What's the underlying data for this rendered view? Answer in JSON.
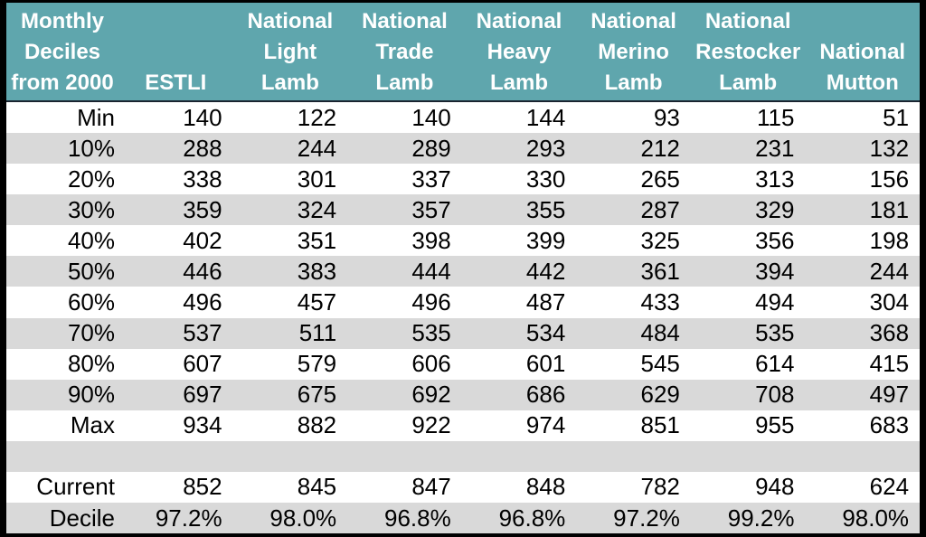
{
  "colors": {
    "header_bg": "#5FA6AD",
    "header_text": "#FFFFFF",
    "stripe_row": "#D9D9D9",
    "plain_row": "#FFFFFF",
    "divider": "#1A2430",
    "outer_border": "#000000",
    "data_text": "#000000"
  },
  "chart_data": {
    "type": "table",
    "title": "Monthly Deciles from 2000",
    "corner_lines": [
      "Monthly",
      "Deciles",
      "from 2000"
    ],
    "columns": [
      {
        "lines": [
          "ESTLI"
        ]
      },
      {
        "lines": [
          "National",
          "Light",
          "Lamb"
        ]
      },
      {
        "lines": [
          "National",
          "Trade",
          "Lamb"
        ]
      },
      {
        "lines": [
          "National",
          "Heavy",
          "Lamb"
        ]
      },
      {
        "lines": [
          "National",
          "Merino",
          "Lamb"
        ]
      },
      {
        "lines": [
          "National",
          "Restocker",
          "Lamb"
        ]
      },
      {
        "lines": [
          "National",
          "Mutton"
        ]
      }
    ],
    "rows": [
      {
        "label": "Min",
        "values": [
          "140",
          "122",
          "140",
          "144",
          "93",
          "115",
          "51"
        ]
      },
      {
        "label": "10%",
        "values": [
          "288",
          "244",
          "289",
          "293",
          "212",
          "231",
          "132"
        ]
      },
      {
        "label": "20%",
        "values": [
          "338",
          "301",
          "337",
          "330",
          "265",
          "313",
          "156"
        ]
      },
      {
        "label": "30%",
        "values": [
          "359",
          "324",
          "357",
          "355",
          "287",
          "329",
          "181"
        ]
      },
      {
        "label": "40%",
        "values": [
          "402",
          "351",
          "398",
          "399",
          "325",
          "356",
          "198"
        ]
      },
      {
        "label": "50%",
        "values": [
          "446",
          "383",
          "444",
          "442",
          "361",
          "394",
          "244"
        ]
      },
      {
        "label": "60%",
        "values": [
          "496",
          "457",
          "496",
          "487",
          "433",
          "494",
          "304"
        ]
      },
      {
        "label": "70%",
        "values": [
          "537",
          "511",
          "535",
          "534",
          "484",
          "535",
          "368"
        ]
      },
      {
        "label": "80%",
        "values": [
          "607",
          "579",
          "606",
          "601",
          "545",
          "614",
          "415"
        ]
      },
      {
        "label": "90%",
        "values": [
          "697",
          "675",
          "692",
          "686",
          "629",
          "708",
          "497"
        ]
      },
      {
        "label": "Max",
        "values": [
          "934",
          "882",
          "922",
          "974",
          "851",
          "955",
          "683"
        ]
      },
      {
        "label": "",
        "values": [
          "",
          "",
          "",
          "",
          "",
          "",
          ""
        ]
      },
      {
        "label": "Current",
        "values": [
          "852",
          "845",
          "847",
          "848",
          "782",
          "948",
          "624"
        ]
      },
      {
        "label": "Decile",
        "values": [
          "97.2%",
          "98.0%",
          "96.8%",
          "96.8%",
          "97.2%",
          "99.2%",
          "98.0%"
        ]
      }
    ]
  }
}
